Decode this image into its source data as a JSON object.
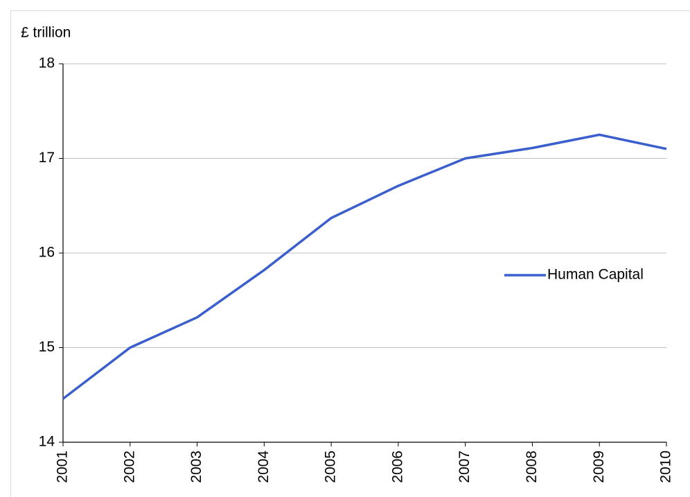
{
  "chart_data": {
    "type": "line",
    "y_label": "£ trillion",
    "categories": [
      "2001",
      "2002",
      "2003",
      "2004",
      "2005",
      "2006",
      "2007",
      "2008",
      "2009",
      "2010"
    ],
    "series": [
      {
        "name": "Human Capital",
        "color": "#3a5fcd",
        "values": [
          14.46,
          15.0,
          15.32,
          15.82,
          16.37,
          16.71,
          17.0,
          17.11,
          17.25,
          17.1
        ]
      }
    ],
    "ylim": [
      14,
      18
    ],
    "yticks": [
      14,
      15,
      16,
      17,
      18
    ],
    "grid": true,
    "legend": "right"
  }
}
